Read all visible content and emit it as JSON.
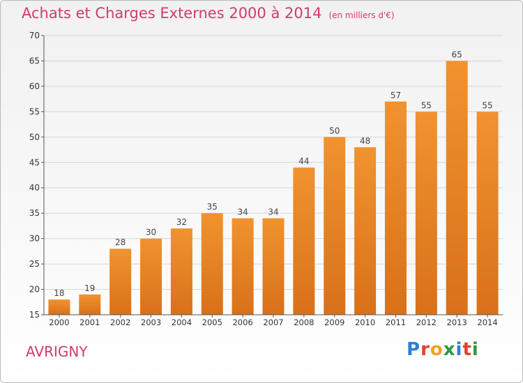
{
  "chart_data": {
    "type": "bar",
    "title": "Achats et Charges Externes 2000 à 2014",
    "subtitle": "(en milliers d'€)",
    "categories": [
      "2000",
      "2001",
      "2002",
      "2003",
      "2004",
      "2005",
      "2006",
      "2007",
      "2008",
      "2009",
      "2010",
      "2011",
      "2012",
      "2013",
      "2014"
    ],
    "values": [
      18,
      19,
      28,
      30,
      32,
      35,
      34,
      34,
      44,
      50,
      48,
      57,
      55,
      65,
      55
    ],
    "xlabel": "",
    "ylabel": "",
    "ylim": [
      15,
      70
    ],
    "yticks": [
      15,
      20,
      25,
      30,
      35,
      40,
      45,
      50,
      55,
      60,
      65,
      70
    ],
    "grid": true,
    "bar_color": "#f0932f",
    "bar_color_dark": "#d8711a",
    "data_labels": true
  },
  "footer": {
    "city": "AVRIGNY",
    "logo": {
      "text": "Proxiti",
      "letters": [
        {
          "ch": "P",
          "color": "#2f7fd0"
        },
        {
          "ch": "r",
          "color": "#e0412a"
        },
        {
          "ch": "o",
          "color": "#f4a11c"
        },
        {
          "ch": "x",
          "color": "#2a9a43"
        },
        {
          "ch": "i",
          "color": "#2f7fd0"
        },
        {
          "ch": "t",
          "color": "#e0412a"
        },
        {
          "ch": "i",
          "color": "#2a9a43"
        }
      ]
    }
  },
  "colors": {
    "title": "#d13a6e",
    "axis": "#555555",
    "grid": "#d5d5d5"
  }
}
